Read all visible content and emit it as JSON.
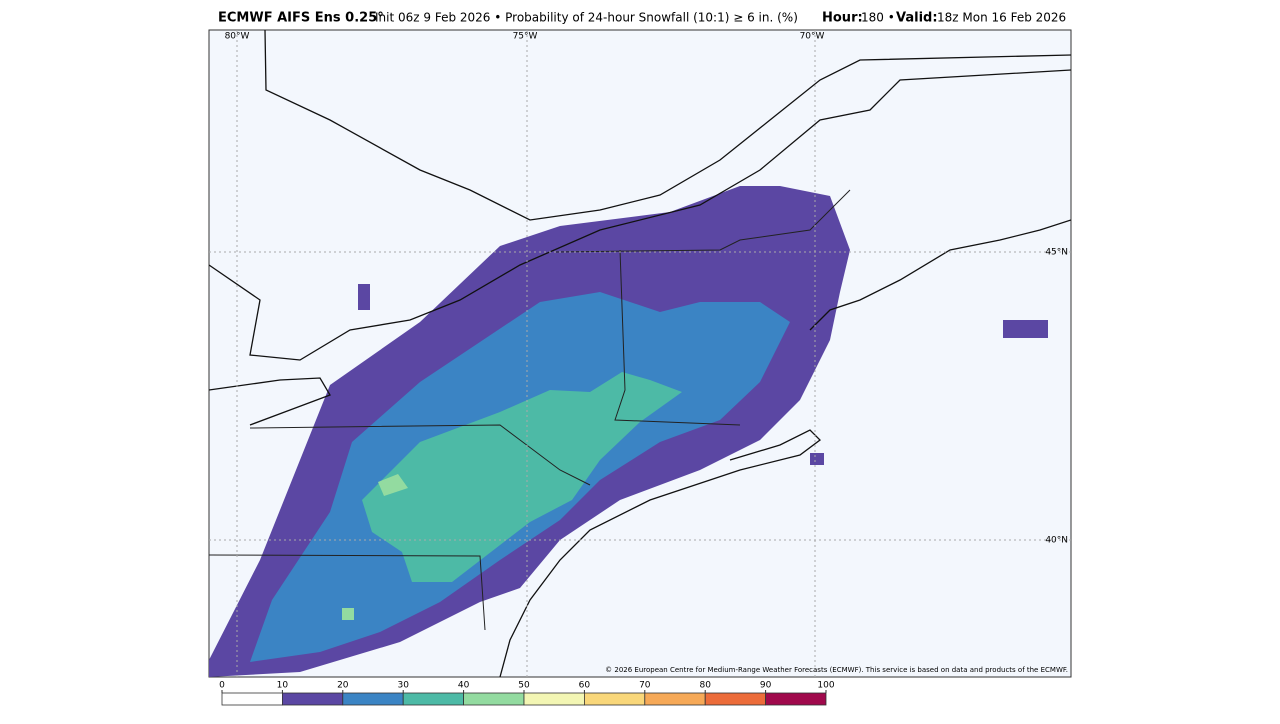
{
  "header": {
    "model": "ECMWF AIFS Ens 0.25°",
    "description": "Init 06z 9 Feb 2026 • Probability of 24-hour Snowfall (10:1) ≥ 6 in. (%)",
    "hour_label": "Hour:",
    "hour": "180 •",
    "valid_label": "Valid:",
    "valid": "18z Mon 16 Feb 2026"
  },
  "map": {
    "lon_labels": [
      "80°W",
      "75°W",
      "70°W"
    ],
    "lat_labels": [
      "45°N",
      "40°N"
    ],
    "copyright": "© 2026 European Centre for Medium-Range Weather Forecasts (ECMWF). This service is based on data and products of the ECMWF."
  },
  "colorbar": {
    "ticks": [
      0,
      10,
      20,
      30,
      40,
      50,
      60,
      70,
      80,
      90,
      100
    ],
    "colors": [
      "#ffffff",
      "#5b47a3",
      "#3b84c4",
      "#4dbaa6",
      "#93dba0",
      "#f3f6b4",
      "#f9d77a",
      "#f6a957",
      "#ec6c3a",
      "#a0094c"
    ]
  }
}
